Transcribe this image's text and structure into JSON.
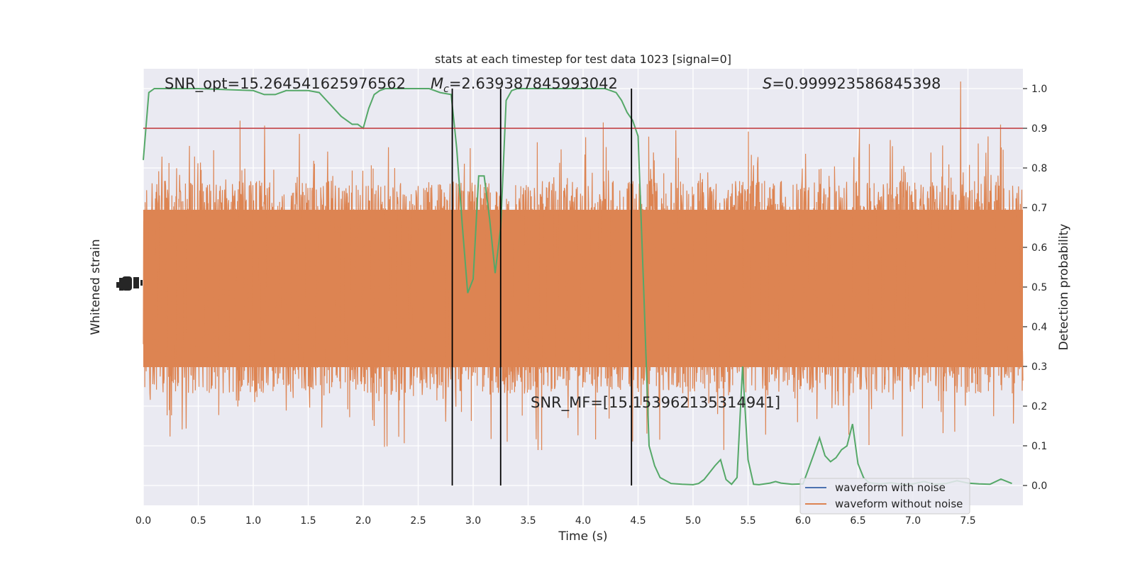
{
  "chart_data": {
    "type": "line",
    "title": "stats at each timestep for test data 1023 [signal=0]",
    "xlabel": "Time (s)",
    "ylabel_left": "Whitened strain",
    "ylabel_right": "Detection probability",
    "xlim": [
      0,
      8
    ],
    "ylim_right": [
      -0.05,
      1.05
    ],
    "x_ticks": [
      "0.0",
      "0.5",
      "1.0",
      "1.5",
      "2.0",
      "2.5",
      "3.0",
      "3.5",
      "4.0",
      "4.5",
      "5.0",
      "5.5",
      "6.0",
      "6.5",
      "7.0",
      "7.5"
    ],
    "x_tick_values": [
      0,
      0.5,
      1,
      1.5,
      2,
      2.5,
      3,
      3.5,
      4,
      4.5,
      5,
      5.5,
      6,
      6.5,
      7,
      7.5
    ],
    "y_right_ticks": [
      "0.0",
      "0.1",
      "0.2",
      "0.3",
      "0.4",
      "0.5",
      "0.6",
      "0.7",
      "0.8",
      "0.9",
      "1.0"
    ],
    "y_right_tick_values": [
      0,
      0.1,
      0.2,
      0.3,
      0.4,
      0.5,
      0.6,
      0.7,
      0.8,
      0.9,
      1.0
    ],
    "annotations": {
      "snr_opt": "SNR_opt=15.264541625976562",
      "mc_prefix": "M",
      "mc_sub": "c",
      "mc_value": "=2.639387845993042",
      "s_prefix": "S",
      "s_value": "=0.999923586845398",
      "snr_mf": "SNR_MF=[15.153962135314941]"
    },
    "threshold": 0.9,
    "vertical_lines_x": [
      2.81,
      3.25,
      4.44
    ],
    "legend": {
      "placement": "lower-right",
      "entries": [
        {
          "label": "waveform with noise",
          "color": "#4c72b0"
        },
        {
          "label": "waveform without noise",
          "color": "#dd8452"
        }
      ]
    },
    "series": [
      {
        "name": "waveform with noise",
        "color": "#4c72b0"
      },
      {
        "name": "waveform without noise",
        "color": "#dd8452"
      },
      {
        "color": "#55a868",
        "x": [
          0,
          0.05,
          0.1,
          0.2,
          0.5,
          1.0,
          1.1,
          1.2,
          1.3,
          1.4,
          1.5,
          1.6,
          1.7,
          1.8,
          1.9,
          1.95,
          2.0,
          2.05,
          2.1,
          2.15,
          2.2,
          2.3,
          2.4,
          2.5,
          2.6,
          2.7,
          2.8,
          2.85,
          2.9,
          2.95,
          3.0,
          3.05,
          3.1,
          3.15,
          3.2,
          3.25,
          3.3,
          3.35,
          3.4,
          3.45,
          3.5,
          3.6,
          3.7,
          3.8,
          3.9,
          4.0,
          4.2,
          4.3,
          4.35,
          4.4,
          4.45,
          4.5,
          4.55,
          4.6,
          4.65,
          4.7,
          4.8,
          4.9,
          5.0,
          5.05,
          5.1,
          5.2,
          5.25,
          5.3,
          5.35,
          5.4,
          5.45,
          5.5,
          5.55,
          5.6,
          5.7,
          5.75,
          5.8,
          5.9,
          6.0,
          6.1,
          6.15,
          6.2,
          6.25,
          6.3,
          6.35,
          6.4,
          6.45,
          6.5,
          6.55,
          6.6,
          6.7,
          6.8,
          6.9,
          7.0,
          7.1,
          7.2,
          7.3,
          7.4,
          7.5,
          7.6,
          7.7,
          7.8,
          7.9
        ],
        "y": [
          0.82,
          0.99,
          1.0,
          1.0,
          1.0,
          0.995,
          0.985,
          0.985,
          0.995,
          0.995,
          0.995,
          0.99,
          0.96,
          0.93,
          0.91,
          0.91,
          0.9,
          0.95,
          0.985,
          0.995,
          1.0,
          1.0,
          1.0,
          1.0,
          1.0,
          0.99,
          0.985,
          0.85,
          0.66,
          0.485,
          0.52,
          0.78,
          0.78,
          0.67,
          0.535,
          0.65,
          0.97,
          0.995,
          1.0,
          1.0,
          1.0,
          1.0,
          1.0,
          1.0,
          1.0,
          1.0,
          1.0,
          0.99,
          0.97,
          0.94,
          0.92,
          0.88,
          0.5,
          0.1,
          0.05,
          0.02,
          0.005,
          0.003,
          0.002,
          0.005,
          0.015,
          0.05,
          0.065,
          0.015,
          0.003,
          0.02,
          0.3,
          0.065,
          0.003,
          0.002,
          0.006,
          0.01,
          0.006,
          0.003,
          0.004,
          0.08,
          0.12,
          0.075,
          0.06,
          0.07,
          0.09,
          0.1,
          0.155,
          0.055,
          0.02,
          0.007,
          0.004,
          0.007,
          0.003,
          0.004,
          0.01,
          0.003,
          0.005,
          0.012,
          0.006,
          0.004,
          0.003,
          0.016,
          0.005
        ]
      }
    ]
  }
}
